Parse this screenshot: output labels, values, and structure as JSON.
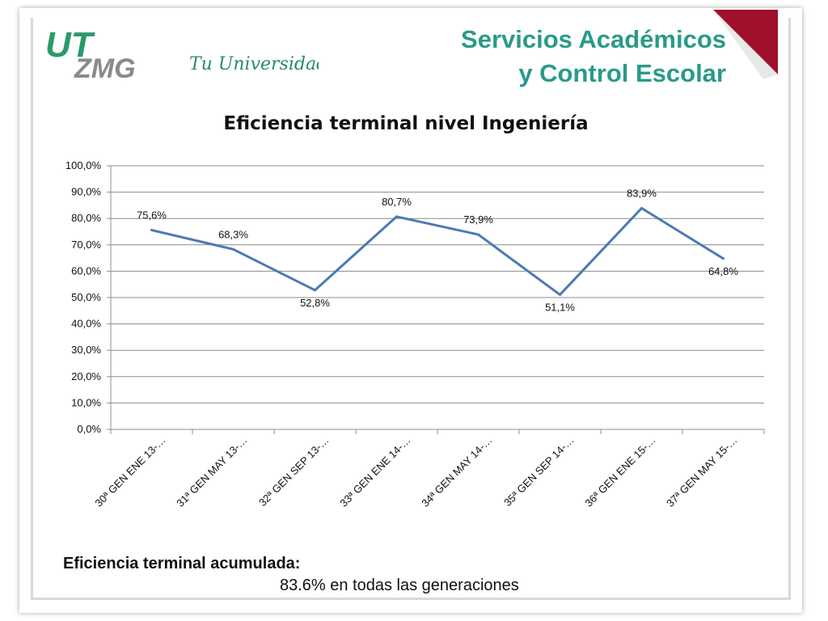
{
  "header": {
    "logo_text": "UTZMG",
    "slogan": "Tu Universidad !",
    "title_line1": "Servicios Académicos",
    "title_line2": "y Control Escolar",
    "accent_color": "#2a9a8a",
    "corner_color": "#a0102a"
  },
  "chart_data": {
    "type": "line",
    "title": "Eficiencia terminal nivel Ingeniería",
    "categories": [
      "30ª GEN ENE 13-…",
      "31ª GEN MAY 13-…",
      "32ª GEN SEP 13-…",
      "33ª GEN ENE 14-…",
      "34ª GEN MAY 14-…",
      "35ª GEN SEP 14-…",
      "36ª GEN ENE 15-…",
      "37ª GEN MAY 15-…"
    ],
    "series": [
      {
        "values": [
          75.6,
          68.3,
          52.8,
          80.7,
          73.9,
          51.1,
          83.9,
          64.8
        ],
        "color": "#4a7ab4"
      }
    ],
    "data_labels": [
      "75,6%",
      "68,3%",
      "52,8%",
      "80,7%",
      "73,9%",
      "51,1%",
      "83,9%",
      "64,8%"
    ],
    "y_ticks": [
      "0,0%",
      "10,0%",
      "20,0%",
      "30,0%",
      "40,0%",
      "50,0%",
      "60,0%",
      "70,0%",
      "80,0%",
      "90,0%",
      "100,0%"
    ],
    "ylim": [
      0,
      100
    ],
    "grid": true,
    "legend": "none"
  },
  "footer": {
    "title": "Eficiencia terminal acumulada:",
    "value": "83.6%  en todas las generaciones"
  }
}
